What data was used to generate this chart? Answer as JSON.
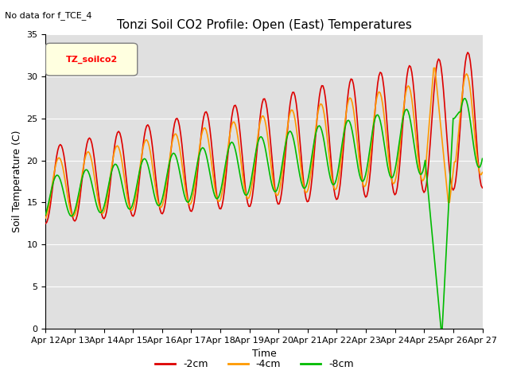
{
  "title": "Tonzi Soil CO2 Profile: Open (East) Temperatures",
  "subtitle": "No data for f_TCE_4",
  "xlabel": "Time",
  "ylabel": "Soil Temperature (C)",
  "legend_label": "TZ_soilco2",
  "ylim": [
    0,
    35
  ],
  "series_labels": [
    "-2cm",
    "-4cm",
    "-8cm"
  ],
  "series_colors": [
    "#dd0000",
    "#ff9900",
    "#00bb00"
  ],
  "plot_bg_color": "#e0e0e0",
  "grid_color": "#ffffff"
}
